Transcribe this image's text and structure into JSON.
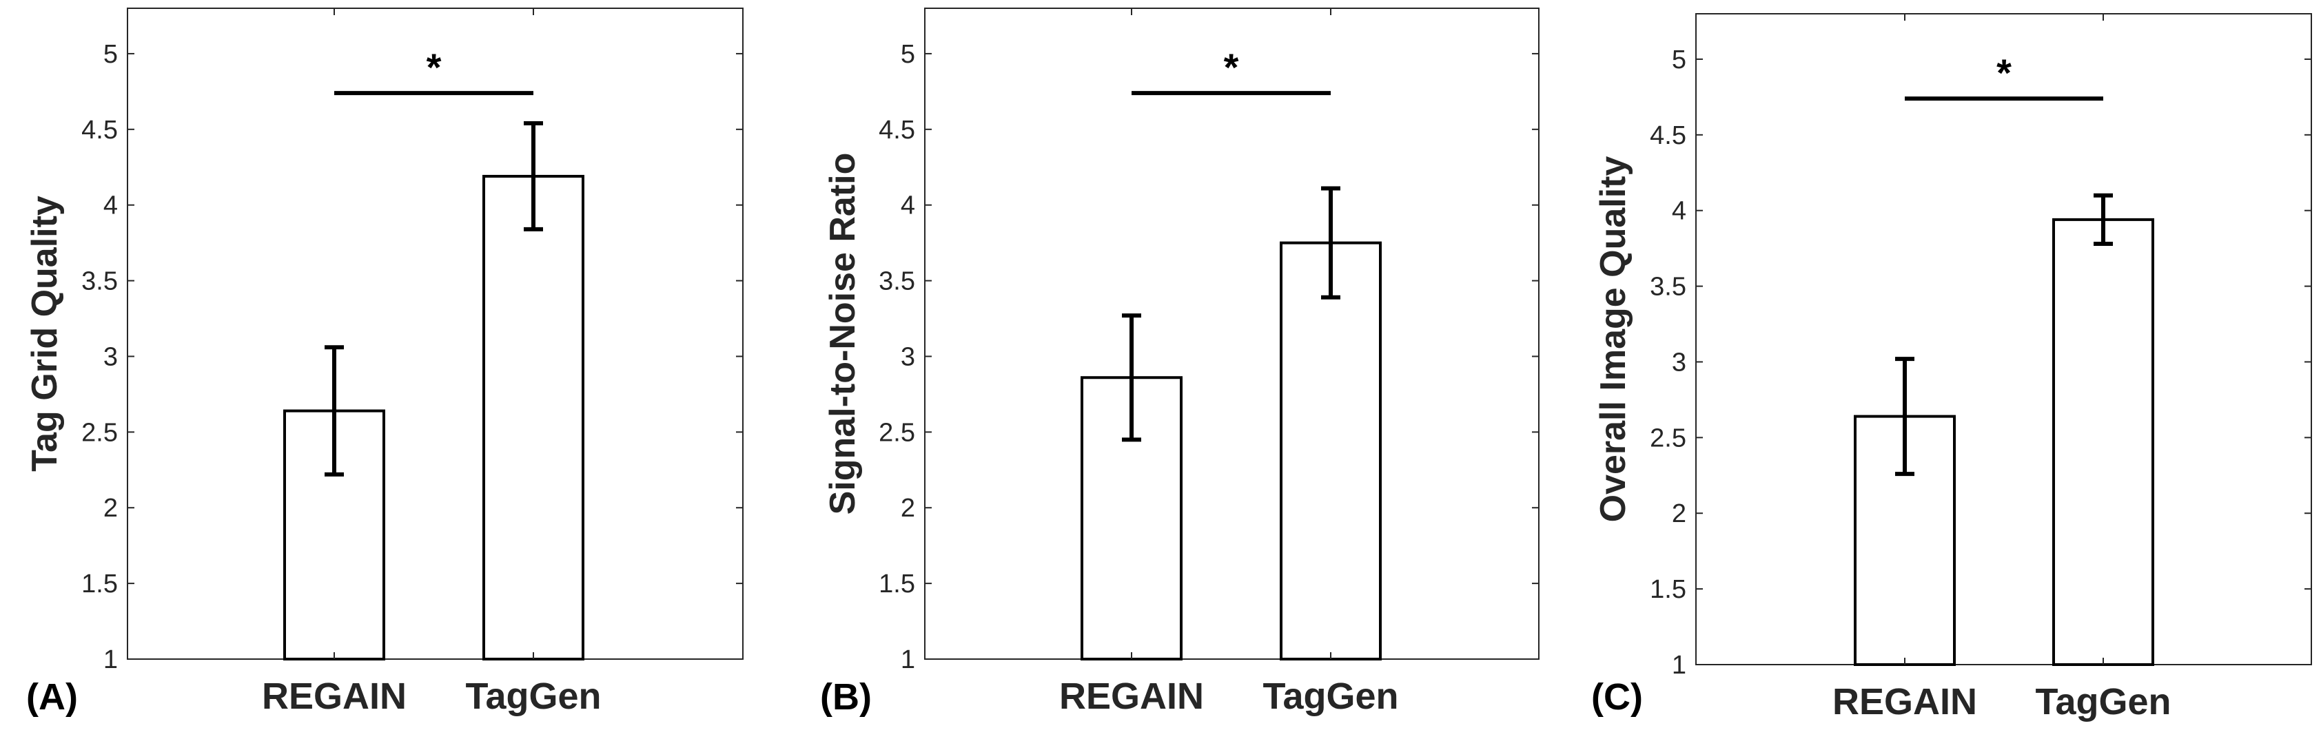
{
  "chart_data": [
    {
      "type": "bar",
      "panel_label": "(A)",
      "categories": [
        "REGAIN",
        "TagGen"
      ],
      "values": [
        2.64,
        4.19
      ],
      "error": [
        0.42,
        0.35
      ],
      "ylabel": "Tag Grid Quality",
      "xlabel": "",
      "ylim": [
        1,
        5.3
      ],
      "yticks": [
        "1",
        "1.5",
        "2",
        "2.5",
        "3",
        "3.5",
        "4",
        "4.5",
        "5"
      ],
      "significance": {
        "label": "*",
        "y": 4.74
      },
      "grid": false
    },
    {
      "type": "bar",
      "panel_label": "(B)",
      "categories": [
        "REGAIN",
        "TagGen"
      ],
      "values": [
        2.86,
        3.75
      ],
      "error": [
        0.41,
        0.36
      ],
      "ylabel": "Signal-to-Noise Ratio",
      "xlabel": "",
      "ylim": [
        1,
        5.3
      ],
      "yticks": [
        "1",
        "1.5",
        "2",
        "2.5",
        "3",
        "3.5",
        "4",
        "4.5",
        "5"
      ],
      "significance": {
        "label": "*",
        "y": 4.74
      },
      "grid": false
    },
    {
      "type": "bar",
      "panel_label": "(C)",
      "categories": [
        "REGAIN",
        "TagGen"
      ],
      "values": [
        2.64,
        3.94
      ],
      "error": [
        0.38,
        0.16
      ],
      "ylabel": "Overall Image Quality",
      "xlabel": "",
      "ylim": [
        1,
        5.3
      ],
      "yticks": [
        "1",
        "1.5",
        "2",
        "2.5",
        "3",
        "3.5",
        "4",
        "4.5",
        "5"
      ],
      "significance": {
        "label": "*",
        "y": 4.74
      },
      "grid": false
    }
  ],
  "colors": {
    "axis": "#262626",
    "bar_fill": "#ffffff",
    "bar_stroke": "#000000"
  }
}
